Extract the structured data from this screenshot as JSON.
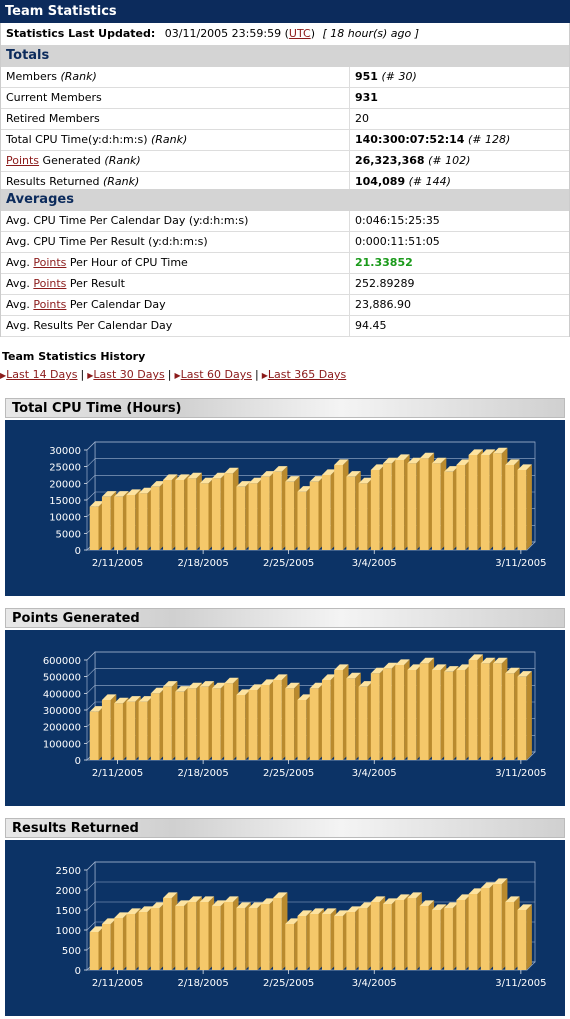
{
  "header": {
    "title": "Team Statistics"
  },
  "updated": {
    "label": "Statistics Last Updated:",
    "datetime": "03/11/2005 23:59:59",
    "tz": "UTC",
    "ago": "[ 18 hour(s) ago ]"
  },
  "totals": {
    "heading": "Totals",
    "rows": [
      {
        "label": "Members",
        "rank_label": "(Rank)",
        "value": "951",
        "rank": "(# 30)"
      },
      {
        "label": "Current Members",
        "value": "931"
      },
      {
        "label": "Retired Members",
        "value": "20"
      },
      {
        "label": "Total CPU Time(y:d:h:m:s)",
        "rank_label": "(Rank)",
        "value": "140:300:07:52:14",
        "rank": "(# 128)"
      },
      {
        "label_link": "Points",
        "label": "Generated",
        "rank_label": "(Rank)",
        "value": "26,323,368",
        "rank": "(# 102)"
      },
      {
        "label": "Results Returned",
        "rank_label": "(Rank)",
        "value": "104,089",
        "rank": "(# 144)"
      }
    ]
  },
  "averages": {
    "heading": "Averages",
    "rows": [
      {
        "pre": "Avg. CPU Time Per Calendar Day (y:d:h:m:s)",
        "value": "0:046:15:25:35"
      },
      {
        "pre": "Avg. CPU Time Per Result (y:d:h:m:s)",
        "value": "0:000:11:51:05"
      },
      {
        "pre": "Avg.",
        "link": "Points",
        "post": "Per Hour of CPU Time",
        "value": "21.33852",
        "highlight": "#1a9a1a"
      },
      {
        "pre": "Avg.",
        "link": "Points",
        "post": "Per Result",
        "value": "252.89289"
      },
      {
        "pre": "Avg.",
        "link": "Points",
        "post": "Per Calendar Day",
        "value": "23,886.90"
      },
      {
        "pre": "Avg. Results Per Calendar Day",
        "value": "94.45"
      }
    ]
  },
  "history": {
    "title": "Team Statistics History",
    "links": [
      "Last 14 Days",
      "Last 30 Days",
      "Last 60 Days",
      "Last 365 Days"
    ],
    "separator": "|"
  },
  "chart_data": [
    {
      "type": "bar",
      "title": "Total CPU Time (Hours)",
      "yticks": [
        "0",
        "5000",
        "10000",
        "15000",
        "20000",
        "25000",
        "30000"
      ],
      "ylim": [
        0,
        30000
      ],
      "xticks": [
        "2/11/2005",
        "2/18/2005",
        "2/25/2005",
        "3/4/2005",
        "3/11/2005"
      ],
      "values": [
        13000,
        16000,
        16000,
        16500,
        17000,
        19000,
        21000,
        21000,
        21500,
        20000,
        21500,
        23000,
        19000,
        20000,
        22000,
        23500,
        20500,
        17500,
        20500,
        22500,
        25500,
        22000,
        20000,
        24000,
        26000,
        27000,
        26000,
        27500,
        26000,
        23500,
        25500,
        28500,
        28500,
        29000,
        25500,
        24000
      ],
      "colors": {
        "bar": "#f5c86a",
        "bg": "#0c3366"
      }
    },
    {
      "type": "bar",
      "title": "Points Generated",
      "yticks": [
        "0",
        "100000",
        "200000",
        "300000",
        "400000",
        "500000",
        "600000"
      ],
      "ylim": [
        0,
        600000
      ],
      "xticks": [
        "2/11/2005",
        "2/18/2005",
        "2/25/2005",
        "3/4/2005",
        "3/11/2005"
      ],
      "values": [
        290000,
        360000,
        340000,
        350000,
        350000,
        400000,
        440000,
        410000,
        430000,
        440000,
        430000,
        460000,
        390000,
        420000,
        450000,
        480000,
        430000,
        360000,
        430000,
        480000,
        540000,
        490000,
        440000,
        520000,
        550000,
        570000,
        540000,
        580000,
        540000,
        530000,
        540000,
        600000,
        580000,
        580000,
        520000,
        500000
      ],
      "colors": {
        "bar": "#f5c86a",
        "bg": "#0c3366"
      }
    },
    {
      "type": "bar",
      "title": "Results Returned",
      "yticks": [
        "0",
        "500",
        "1000",
        "1500",
        "2000",
        "2500"
      ],
      "ylim": [
        0,
        2500
      ],
      "xticks": [
        "2/11/2005",
        "2/18/2005",
        "2/25/2005",
        "3/4/2005",
        "3/11/2005"
      ],
      "values": [
        950,
        1150,
        1300,
        1400,
        1450,
        1550,
        1800,
        1600,
        1700,
        1700,
        1600,
        1700,
        1550,
        1550,
        1650,
        1800,
        1150,
        1350,
        1400,
        1400,
        1350,
        1450,
        1550,
        1700,
        1650,
        1750,
        1800,
        1600,
        1500,
        1550,
        1750,
        1900,
        2050,
        2150,
        1700,
        1500
      ],
      "colors": {
        "bar": "#f5c86a",
        "bg": "#0c3366"
      }
    }
  ]
}
